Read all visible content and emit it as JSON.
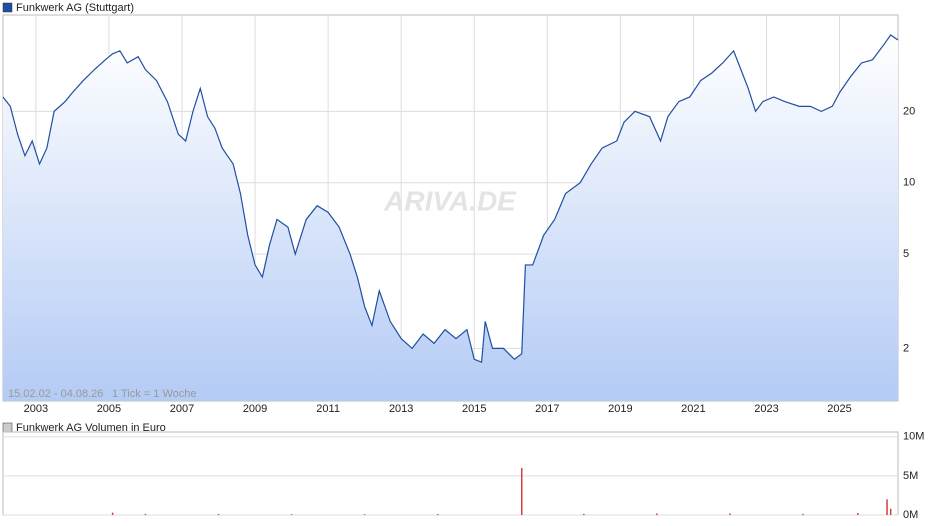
{
  "chart_data": [
    {
      "type": "line",
      "log": true,
      "grid": true,
      "title": "Funkwerk AG (Stuttgart)",
      "range_label": "15.02.02 - 04.08.26",
      "tick_note": "1 Tick = 1 Woche",
      "watermark": "ARIVA.DE",
      "xlim": [
        2002.1,
        2026.6
      ],
      "xticks": [
        2003,
        2005,
        2007,
        2009,
        2011,
        2013,
        2015,
        2017,
        2019,
        2021,
        2023,
        2025
      ],
      "ylim": [
        1.2,
        51
      ],
      "yticks": [
        2,
        5,
        10,
        20
      ],
      "x": [
        2002.1,
        2002.3,
        2002.5,
        2002.7,
        2002.9,
        2003.1,
        2003.3,
        2003.5,
        2003.8,
        2004.0,
        2004.3,
        2004.6,
        2004.9,
        2005.1,
        2005.3,
        2005.5,
        2005.8,
        2006.0,
        2006.3,
        2006.6,
        2006.9,
        2007.1,
        2007.3,
        2007.5,
        2007.7,
        2007.9,
        2008.1,
        2008.4,
        2008.6,
        2008.8,
        2009.0,
        2009.2,
        2009.4,
        2009.6,
        2009.9,
        2010.1,
        2010.4,
        2010.7,
        2011.0,
        2011.3,
        2011.6,
        2011.8,
        2012.0,
        2012.2,
        2012.4,
        2012.7,
        2013.0,
        2013.3,
        2013.6,
        2013.9,
        2014.2,
        2014.5,
        2014.8,
        2015.0,
        2015.2,
        2015.3,
        2015.5,
        2015.8,
        2016.1,
        2016.3,
        2016.4,
        2016.6,
        2016.9,
        2017.2,
        2017.5,
        2017.9,
        2018.2,
        2018.5,
        2018.9,
        2019.1,
        2019.4,
        2019.8,
        2020.1,
        2020.3,
        2020.6,
        2020.9,
        2021.2,
        2021.5,
        2021.8,
        2022.1,
        2022.3,
        2022.5,
        2022.7,
        2022.9,
        2023.2,
        2023.5,
        2023.9,
        2024.2,
        2024.5,
        2024.8,
        2025.0,
        2025.3,
        2025.6,
        2025.9,
        2026.2,
        2026.4,
        2026.6
      ],
      "series": [
        {
          "name": "Funkwerk AG (Stuttgart)",
          "color": "#1f4fa0",
          "values": [
            23,
            21,
            16,
            13,
            15,
            12,
            14,
            20,
            22,
            24,
            27,
            30,
            33,
            35,
            36,
            32,
            34,
            30,
            27,
            22,
            16,
            15,
            20,
            25,
            19,
            17,
            14,
            12,
            9,
            6,
            4.5,
            4,
            5.5,
            7,
            6.5,
            5,
            7,
            8,
            7.5,
            6.5,
            5,
            4,
            3,
            2.5,
            3.5,
            2.6,
            2.2,
            2.0,
            2.3,
            2.1,
            2.4,
            2.2,
            2.4,
            1.8,
            1.75,
            2.6,
            2.0,
            2.0,
            1.8,
            1.9,
            4.5,
            4.5,
            6,
            7,
            9,
            10,
            12,
            14,
            15,
            18,
            20,
            19,
            15,
            19,
            22,
            23,
            27,
            29,
            32,
            36,
            30,
            25,
            20,
            22,
            23,
            22,
            21,
            21,
            20,
            21,
            24,
            28,
            32,
            33,
            38,
            42,
            40
          ]
        }
      ]
    },
    {
      "type": "bar",
      "grid": true,
      "title": "Funkwerk AG Volumen in Euro",
      "xlim": [
        2002.1,
        2026.6
      ],
      "ylim": [
        0,
        10600000
      ],
      "yticks": [
        {
          "value": 0,
          "label": "0M"
        },
        {
          "value": 5000000,
          "label": "5M"
        },
        {
          "value": 10000000,
          "label": "10M"
        }
      ],
      "x": [
        2005.1,
        2006.0,
        2008.0,
        2010.0,
        2012.0,
        2014.0,
        2016.3,
        2018.0,
        2020.0,
        2022.0,
        2024.0,
        2025.5,
        2026.3,
        2026.4
      ],
      "series": [
        {
          "name": "Funkwerk AG Volumen in Euro",
          "color": "#d04040",
          "values": [
            300000,
            150000,
            120000,
            100000,
            100000,
            120000,
            6000000,
            150000,
            200000,
            200000,
            150000,
            250000,
            2000000,
            800000
          ]
        }
      ]
    }
  ]
}
